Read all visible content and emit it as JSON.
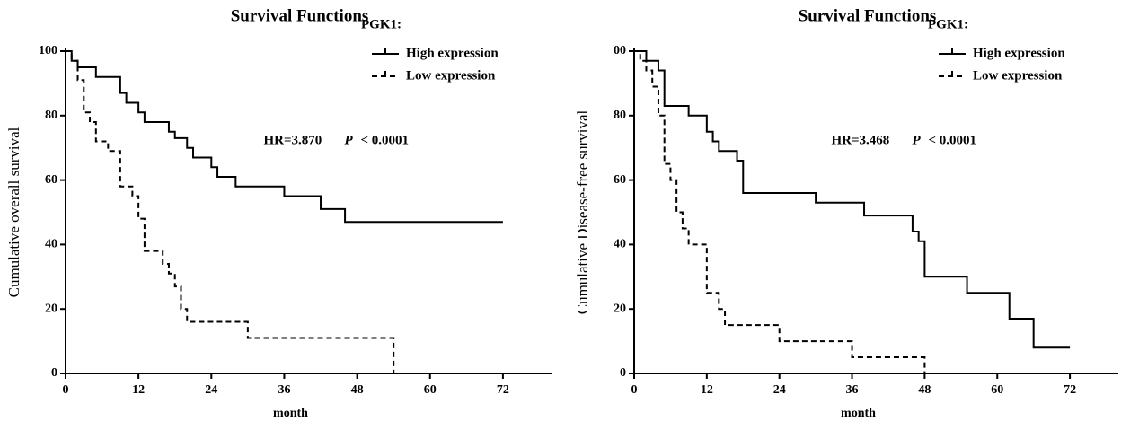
{
  "chart_data": [
    {
      "type": "step",
      "title": "Survival Functions",
      "xlabel": "month",
      "ylabel": "Cumulative overall survival",
      "legend_title": "PGK1:",
      "annotation": "HR=3.870",
      "p_label": "P",
      "p_value": "< 0.0001",
      "xlim": [
        0,
        80
      ],
      "ylim": [
        0,
        100
      ],
      "xticks": [
        0,
        12,
        24,
        36,
        48,
        60,
        72
      ],
      "yticks": [
        0,
        20,
        40,
        60,
        80,
        100
      ],
      "series": [
        {
          "name": "High expression",
          "color": "#000000",
          "dash": false,
          "x": [
            0,
            1,
            2,
            5,
            9,
            10,
            12,
            13,
            17,
            18,
            20,
            21,
            24,
            25,
            28,
            36,
            42,
            46,
            72
          ],
          "values": [
            100,
            97,
            95,
            92,
            87,
            84,
            81,
            78,
            75,
            73,
            70,
            67,
            64,
            61,
            58,
            55,
            51,
            47,
            47
          ]
        },
        {
          "name": "Low expression",
          "color": "#000000",
          "dash": true,
          "x": [
            0,
            1,
            2,
            3,
            4,
            5,
            7,
            9,
            11,
            12,
            13,
            16,
            17,
            18,
            19,
            20,
            30,
            54
          ],
          "values": [
            100,
            97,
            91,
            81,
            78,
            72,
            69,
            58,
            55,
            48,
            38,
            34,
            31,
            27,
            20,
            16,
            11,
            0
          ]
        }
      ]
    },
    {
      "type": "step",
      "title": "Survival Functions",
      "xlabel": "month",
      "ylabel": "Cumulative Disease-free survival",
      "legend_title": "PGK1:",
      "annotation": "HR=3.468",
      "p_label": "P",
      "p_value": "< 0.0001",
      "xlim": [
        0,
        80
      ],
      "ylim": [
        0,
        100
      ],
      "xticks": [
        0,
        12,
        24,
        36,
        48,
        60,
        72
      ],
      "yticks": [
        0,
        20,
        40,
        60,
        80,
        {
          "value": 100,
          "label": "00"
        }
      ],
      "series": [
        {
          "name": "High expression",
          "color": "#000000",
          "dash": false,
          "x": [
            0,
            2,
            4,
            5,
            9,
            12,
            13,
            14,
            17,
            18,
            30,
            38,
            46,
            47,
            48,
            55,
            62,
            66,
            72
          ],
          "values": [
            100,
            97,
            94,
            83,
            80,
            75,
            72,
            69,
            66,
            56,
            53,
            49,
            44,
            41,
            30,
            25,
            17,
            8,
            8
          ]
        },
        {
          "name": "Low expression",
          "color": "#000000",
          "dash": true,
          "x": [
            0,
            1,
            2,
            3,
            4,
            5,
            6,
            7,
            8,
            9,
            12,
            14,
            15,
            24,
            36,
            48
          ],
          "values": [
            100,
            97,
            94,
            89,
            80,
            65,
            60,
            50,
            45,
            40,
            25,
            20,
            15,
            10,
            5,
            0
          ]
        }
      ]
    }
  ]
}
